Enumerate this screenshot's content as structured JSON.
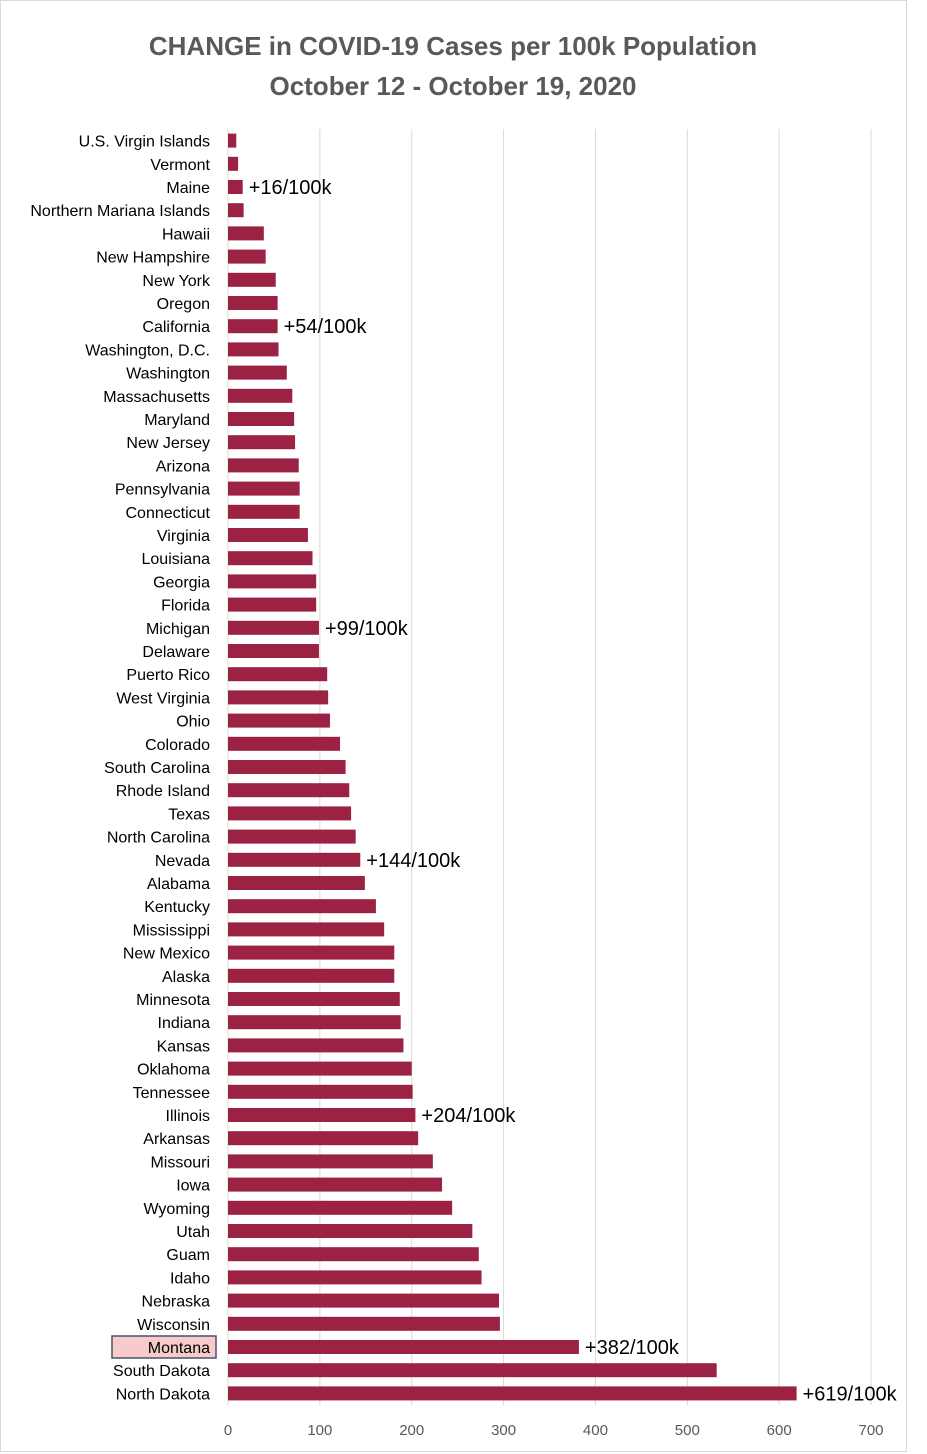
{
  "chart_data": {
    "type": "bar",
    "orientation": "horizontal",
    "title": "CHANGE in COVID-19 Cases per 100k Population",
    "subtitle": "October 12 - October 19, 2020",
    "xlabel": "",
    "ylabel": "",
    "xlim": [
      0,
      700
    ],
    "x_ticks": [
      0,
      100,
      200,
      300,
      400,
      500,
      600,
      700
    ],
    "grid": "vertical",
    "legend": "none",
    "bar_color": "#9b2242",
    "highlight_fill": "#f8cbcb",
    "highlight_border": "#44546a",
    "highlight_category": "Montana",
    "categories": [
      "U.S. Virgin Islands",
      "Vermont",
      "Maine",
      "Northern Mariana Islands",
      "Hawaii",
      "New Hampshire",
      "New York",
      "Oregon",
      "California",
      "Washington, D.C.",
      "Washington",
      "Massachusetts",
      "Maryland",
      "New Jersey",
      "Arizona",
      "Pennsylvania",
      "Connecticut",
      "Virginia",
      "Louisiana",
      "Georgia",
      "Florida",
      "Michigan",
      "Delaware",
      "Puerto Rico",
      "West Virginia",
      "Ohio",
      "Colorado",
      "South Carolina",
      "Rhode Island",
      "Texas",
      "North Carolina",
      "Nevada",
      "Alabama",
      "Kentucky",
      "Mississippi",
      "New Mexico",
      "Alaska",
      "Minnesota",
      "Indiana",
      "Kansas",
      "Oklahoma",
      "Tennessee",
      "Illinois",
      "Arkansas",
      "Missouri",
      "Iowa",
      "Wyoming",
      "Utah",
      "Guam",
      "Idaho",
      "Nebraska",
      "Wisconsin",
      "Montana",
      "South Dakota",
      "North Dakota"
    ],
    "values": [
      9,
      11,
      16,
      17,
      39,
      41,
      52,
      54,
      54,
      55,
      64,
      70,
      72,
      73,
      77,
      78,
      78,
      87,
      92,
      96,
      96,
      99,
      99,
      108,
      109,
      111,
      122,
      128,
      132,
      134,
      139,
      144,
      149,
      161,
      170,
      181,
      181,
      187,
      188,
      191,
      200,
      201,
      204,
      207,
      223,
      233,
      244,
      266,
      273,
      276,
      295,
      296,
      382,
      532,
      619
    ],
    "annotations": [
      {
        "category": "Maine",
        "value": 16,
        "text": "+16/100k"
      },
      {
        "category": "California",
        "value": 54,
        "text": "+54/100k"
      },
      {
        "category": "Michigan",
        "value": 99,
        "text": "+99/100k"
      },
      {
        "category": "Nevada",
        "value": 144,
        "text": "+144/100k"
      },
      {
        "category": "Illinois",
        "value": 204,
        "text": "+204/100k"
      },
      {
        "category": "Montana",
        "value": 382,
        "text": "+382/100k"
      },
      {
        "category": "North Dakota",
        "value": 619,
        "text": "+619/100k"
      }
    ]
  }
}
